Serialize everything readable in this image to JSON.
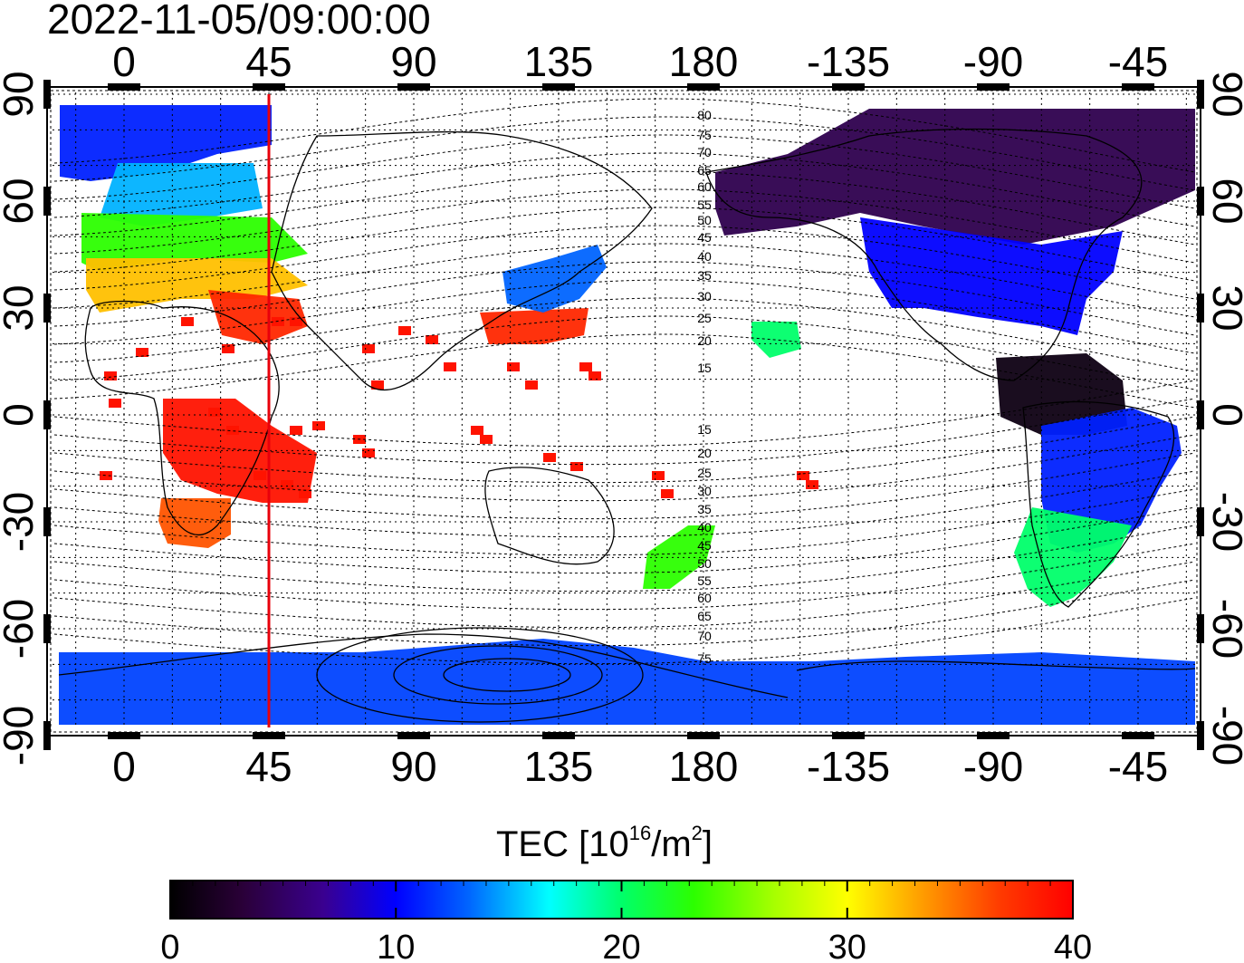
{
  "title": "2022-11-05/09:00:00",
  "top_axis_labels": [
    "0",
    "45",
    "90",
    "135",
    "180",
    "-135",
    "-90",
    "-45"
  ],
  "bottom_axis_labels": [
    "0",
    "45",
    "90",
    "135",
    "180",
    "-135",
    "-90",
    "-45"
  ],
  "left_axis_labels": [
    "90",
    "60",
    "30",
    "0",
    "-30",
    "-60",
    "-90"
  ],
  "right_axis_labels": [
    "90",
    "60",
    "30",
    "0",
    "-30",
    "-60",
    "-90"
  ],
  "colorbar": {
    "title_prefix": "TEC  [10",
    "title_exp1": "16",
    "title_mid": "/m",
    "title_exp2": "2",
    "title_suffix": "]",
    "tick_labels": [
      "0",
      "10",
      "20",
      "30",
      "40"
    ],
    "range": [
      0,
      40
    ]
  },
  "contour_labels_north": [
    "80",
    "75",
    "70",
    "65",
    "60",
    "55",
    "50",
    "45",
    "40",
    "35",
    "30",
    "25",
    "20",
    "15"
  ],
  "contour_labels_south": [
    "15",
    "20",
    "25",
    "30",
    "35",
    "40",
    "45",
    "50",
    "55",
    "60",
    "65",
    "70",
    "75"
  ],
  "marker_line": {
    "longitude": 45,
    "color": "#e8000b"
  },
  "tec_regions": [
    {
      "name": "arctic-europe",
      "value": 11
    },
    {
      "name": "scandinavia",
      "value": 15
    },
    {
      "name": "central-europe",
      "value": 23
    },
    {
      "name": "mediterranean",
      "value": 32
    },
    {
      "name": "middle-east",
      "value": 38
    },
    {
      "name": "africa",
      "value": 39
    },
    {
      "name": "south-africa",
      "value": 36
    },
    {
      "name": "east-asia",
      "value": 38
    },
    {
      "name": "japan",
      "value": 13
    },
    {
      "name": "north-america",
      "value": 4
    },
    {
      "name": "united-states",
      "value": 10
    },
    {
      "name": "central-america",
      "value": 1
    },
    {
      "name": "south-america",
      "value": 11
    },
    {
      "name": "patagonia",
      "value": 20
    },
    {
      "name": "antarctica",
      "value": 12
    },
    {
      "name": "new-zealand",
      "value": 23
    },
    {
      "name": "hawaii",
      "value": 20
    }
  ]
}
